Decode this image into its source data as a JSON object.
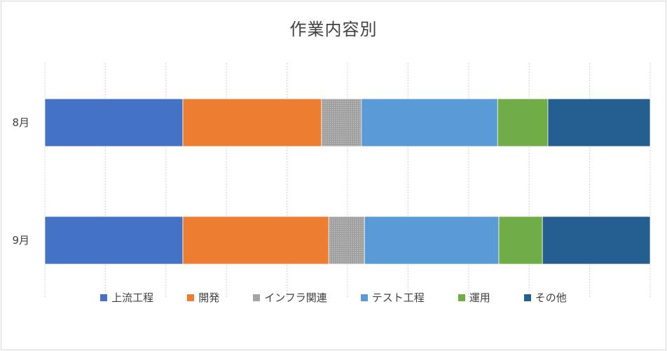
{
  "chart_data": {
    "type": "bar",
    "orientation": "horizontal",
    "stacked": "percent",
    "title": "作業内容別",
    "categories": [
      "8月",
      "9月"
    ],
    "series": [
      {
        "name": "上流工程",
        "color": "#4472c4",
        "values": [
          22.8,
          22.8
        ]
      },
      {
        "name": "開発",
        "color": "#ed7d31",
        "values": [
          22.9,
          24.1
        ]
      },
      {
        "name": "インフラ関連",
        "color": "#a5a5a5",
        "pattern": "dotted",
        "values": [
          6.6,
          5.9
        ]
      },
      {
        "name": "テスト工程",
        "color": "#5b9bd5",
        "values": [
          22.5,
          22.2
        ]
      },
      {
        "name": "運用",
        "color": "#70ad47",
        "values": [
          8.3,
          7.2
        ]
      },
      {
        "name": "その他",
        "color": "#255e91",
        "values": [
          16.9,
          17.8
        ]
      }
    ],
    "xlim": [
      0,
      100
    ],
    "gridlines": "vertical",
    "legend": "bottom"
  }
}
